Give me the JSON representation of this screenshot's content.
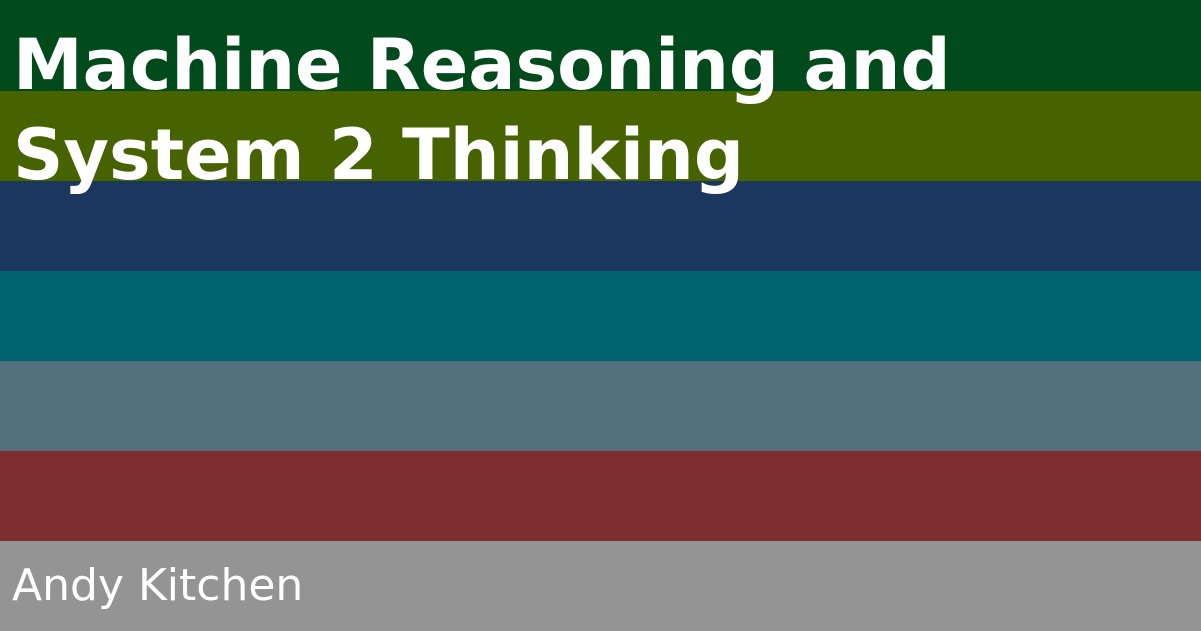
{
  "title_lines": [
    "Machine Reasoning and",
    "System 2 Thinking"
  ],
  "author": "Andy Kitchen",
  "stripe_colors": [
    "#004a1c",
    "#476300",
    "#1c375e",
    "#00636e",
    "#54707a",
    "#7d2c30",
    "#949494"
  ],
  "text_color": "#ffffff"
}
